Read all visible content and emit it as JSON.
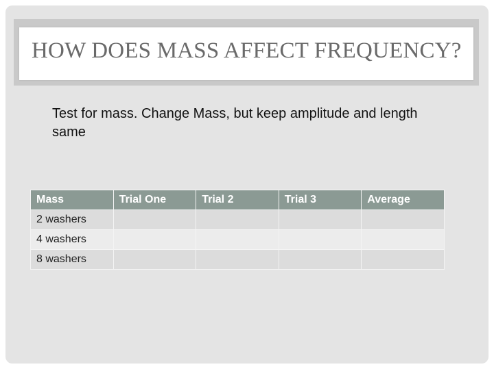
{
  "slide": {
    "title": "HOW DOES MASS AFFECT FREQUENCY?",
    "body": "Test for mass.  Change Mass, but keep amplitude and length same",
    "table": {
      "headers": [
        "Mass",
        "Trial One",
        "Trial 2",
        "Trial 3",
        "Average"
      ],
      "rows": [
        [
          "2 washers",
          "",
          "",
          "",
          ""
        ],
        [
          "4 washers",
          "",
          "",
          "",
          ""
        ],
        [
          "8 washers",
          "",
          "",
          "",
          ""
        ]
      ]
    },
    "colors": {
      "header_bg": "#8b9a94",
      "slide_bg": "#e4e4e4",
      "title_text": "#6a6a6a"
    }
  }
}
